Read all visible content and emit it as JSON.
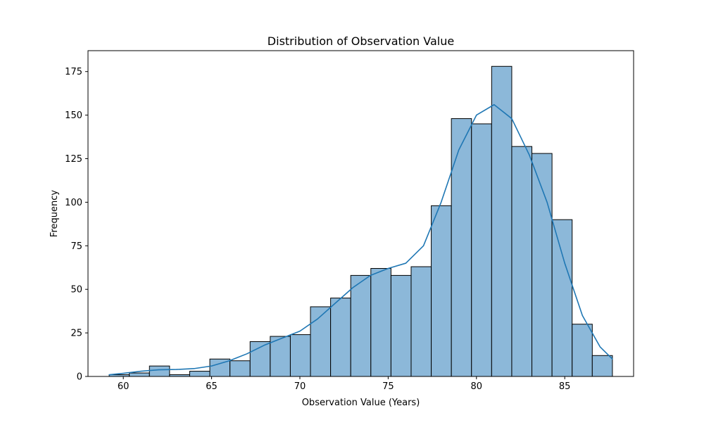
{
  "chart_data": {
    "type": "bar",
    "title": "Distribution of Observation Value",
    "xlabel": "Observation Value (Years)",
    "ylabel": "Frequency",
    "xlim": [
      58.0,
      88.9
    ],
    "ylim": [
      0,
      187
    ],
    "xticks": [
      60,
      65,
      70,
      75,
      80,
      85
    ],
    "yticks": [
      0,
      25,
      50,
      75,
      100,
      125,
      150,
      175
    ],
    "bin_edges": [
      59.2,
      60.34,
      61.48,
      62.62,
      63.76,
      64.9,
      66.04,
      67.18,
      68.32,
      69.46,
      70.6,
      71.74,
      72.88,
      74.02,
      75.16,
      76.3,
      77.44,
      78.58,
      79.72,
      80.86,
      82.0,
      83.14,
      84.28,
      85.42,
      86.56,
      87.7
    ],
    "counts": [
      1,
      2,
      6,
      1,
      3,
      10,
      9,
      20,
      23,
      24,
      40,
      45,
      58,
      62,
      58,
      63,
      98,
      148,
      145,
      178,
      132,
      128,
      90,
      30,
      12
    ],
    "kde_line": {
      "x": [
        59.2,
        60,
        61,
        62,
        63,
        64,
        65,
        66,
        67,
        68,
        69,
        70,
        71,
        72,
        73,
        74,
        75,
        76,
        77,
        78,
        79,
        80,
        81,
        82,
        83,
        84,
        85,
        86,
        87,
        87.7
      ],
      "y": [
        1,
        1.8,
        3,
        3.8,
        4,
        4.5,
        6,
        9,
        13,
        18,
        22,
        26,
        33,
        42,
        51,
        58,
        62,
        65,
        75,
        100,
        130,
        150,
        156,
        148,
        127,
        100,
        65,
        35,
        17,
        10
      ]
    },
    "colors": {
      "bar_fill": "#8cb8d9",
      "bar_edge": "#000000",
      "kde_line": "#1f77b4"
    },
    "grid": false,
    "legend": "none"
  }
}
